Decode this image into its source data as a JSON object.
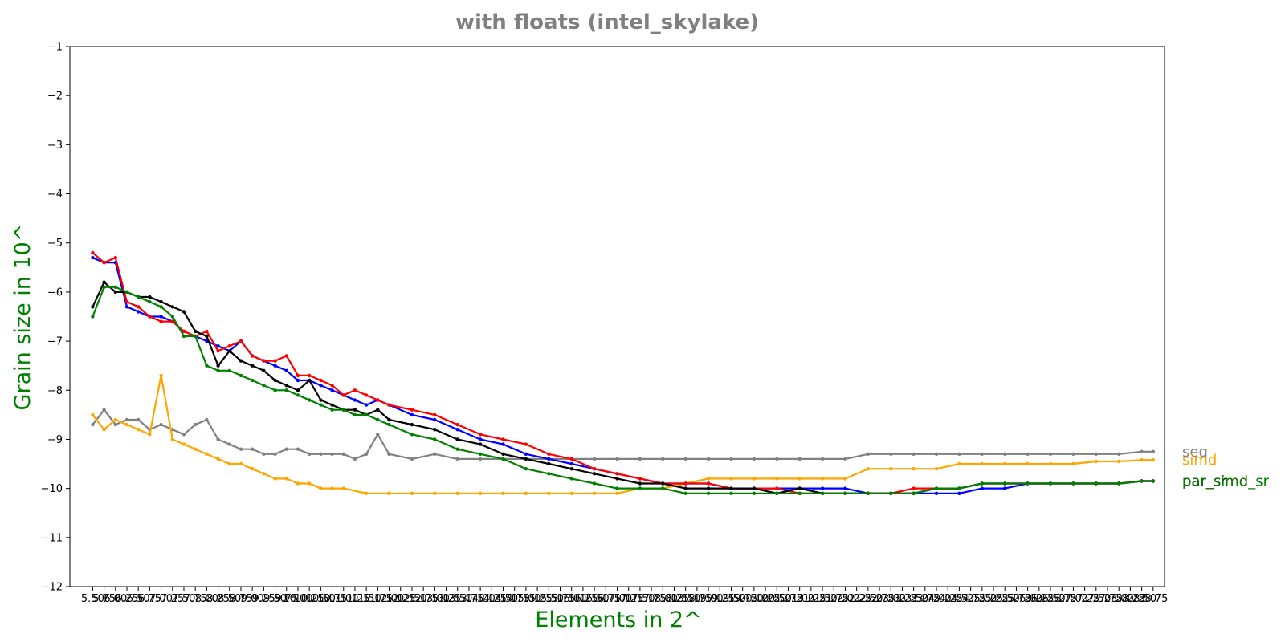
{
  "chart_data": {
    "type": "line",
    "title": "with floats  (intel_skylake)",
    "xlabel": "Elements in 2^",
    "ylabel": "Grain size in 10^",
    "ylim": [
      -12,
      -1
    ],
    "yticks": [
      "−12",
      "−11",
      "−10",
      "−9",
      "−8",
      "−7",
      "−6",
      "−5",
      "−4",
      "−3",
      "−2",
      "−1"
    ],
    "xlim": [
      5.0,
      29.0
    ],
    "xticks": [
      "5.50",
      "5.75",
      "6.00",
      "6.25",
      "6.50",
      "6.75",
      "7.00",
      "7.25",
      "7.50",
      "7.75",
      "8.00",
      "8.25",
      "8.50",
      "8.75",
      "9.00",
      "9.25",
      "9.50",
      "9.75",
      "10.00",
      "10.25",
      "10.50",
      "10.75",
      "11.00",
      "11.25",
      "11.50",
      "11.75",
      "12.00",
      "12.25",
      "12.50",
      "12.75",
      "13.00",
      "13.25",
      "13.50",
      "13.75",
      "14.00",
      "14.25",
      "14.50",
      "14.75",
      "15.00",
      "15.25",
      "15.50",
      "15.75",
      "16.00",
      "16.25",
      "16.50",
      "16.75",
      "17.00",
      "17.25",
      "17.50",
      "17.75",
      "18.00",
      "18.25",
      "18.50",
      "18.75",
      "19.00",
      "19.25",
      "19.50",
      "19.75",
      "20.00",
      "20.25",
      "20.50",
      "20.75",
      "21.00",
      "21.25",
      "21.50",
      "21.75",
      "22.00",
      "22.25",
      "22.50",
      "22.75",
      "23.00",
      "23.25",
      "23.50",
      "23.75",
      "24.00",
      "24.25",
      "24.50",
      "24.75",
      "25.00",
      "25.25",
      "25.50",
      "25.75",
      "26.00",
      "26.25",
      "26.50",
      "26.75",
      "27.00",
      "27.25",
      "27.50",
      "27.75",
      "28.00",
      "28.25",
      "28.50",
      "28.75"
    ],
    "grid": false,
    "legend_placement": "right of plot",
    "series": [
      {
        "name": "seq",
        "color": "#808080",
        "x": [
          5.5,
          5.75,
          6.0,
          6.25,
          6.5,
          6.75,
          7.0,
          7.25,
          7.5,
          7.75,
          8.0,
          8.25,
          8.5,
          8.75,
          9.0,
          9.25,
          9.5,
          9.75,
          10.0,
          10.25,
          10.5,
          10.75,
          11.0,
          11.25,
          11.5,
          11.75,
          12.0,
          12.5,
          13.0,
          13.5,
          14.0,
          14.5,
          15.0,
          15.5,
          16.0,
          16.5,
          17.0,
          17.5,
          18.0,
          18.5,
          19.0,
          19.5,
          20.0,
          20.5,
          21.0,
          21.5,
          22.0,
          22.5,
          23.0,
          23.5,
          24.0,
          24.5,
          25.0,
          25.5,
          26.0,
          26.5,
          27.0,
          27.5,
          28.0,
          28.5,
          28.75
        ],
        "y": [
          -8.7,
          -8.4,
          -8.7,
          -8.6,
          -8.6,
          -8.8,
          -8.7,
          -8.8,
          -8.9,
          -8.7,
          -8.6,
          -9.0,
          -9.1,
          -9.2,
          -9.2,
          -9.3,
          -9.3,
          -9.2,
          -9.2,
          -9.3,
          -9.3,
          -9.3,
          -9.3,
          -9.4,
          -9.3,
          -8.9,
          -9.3,
          -9.4,
          -9.3,
          -9.4,
          -9.4,
          -9.4,
          -9.4,
          -9.4,
          -9.4,
          -9.4,
          -9.4,
          -9.4,
          -9.4,
          -9.4,
          -9.4,
          -9.4,
          -9.4,
          -9.4,
          -9.4,
          -9.4,
          -9.4,
          -9.3,
          -9.3,
          -9.3,
          -9.3,
          -9.3,
          -9.3,
          -9.3,
          -9.3,
          -9.3,
          -9.3,
          -9.3,
          -9.3,
          -9.25,
          -9.25
        ]
      },
      {
        "name": "simd",
        "color": "#FFA500",
        "x": [
          5.5,
          5.75,
          6.0,
          6.25,
          6.5,
          6.75,
          7.0,
          7.25,
          7.5,
          7.75,
          8.0,
          8.25,
          8.5,
          8.75,
          9.0,
          9.25,
          9.5,
          9.75,
          10.0,
          10.25,
          10.5,
          10.75,
          11.0,
          11.5,
          12.0,
          12.5,
          13.0,
          13.5,
          14.0,
          14.5,
          15.0,
          15.5,
          16.0,
          16.5,
          17.0,
          17.5,
          18.0,
          18.5,
          19.0,
          19.5,
          20.0,
          20.5,
          21.0,
          21.5,
          22.0,
          22.5,
          23.0,
          23.5,
          24.0,
          24.5,
          25.0,
          25.5,
          26.0,
          26.5,
          27.0,
          27.5,
          28.0,
          28.5,
          28.75
        ],
        "y": [
          -8.5,
          -8.8,
          -8.6,
          -8.7,
          -8.8,
          -8.9,
          -7.7,
          -9.0,
          -9.1,
          -9.2,
          -9.3,
          -9.4,
          -9.5,
          -9.5,
          -9.6,
          -9.7,
          -9.8,
          -9.8,
          -9.9,
          -9.9,
          -10.0,
          -10.0,
          -10.0,
          -10.1,
          -10.1,
          -10.1,
          -10.1,
          -10.1,
          -10.1,
          -10.1,
          -10.1,
          -10.1,
          -10.1,
          -10.1,
          -10.1,
          -10.0,
          -10.0,
          -9.9,
          -9.8,
          -9.8,
          -9.8,
          -9.8,
          -9.8,
          -9.8,
          -9.8,
          -9.6,
          -9.6,
          -9.6,
          -9.6,
          -9.5,
          -9.5,
          -9.5,
          -9.5,
          -9.5,
          -9.5,
          -9.45,
          -9.45,
          -9.42,
          -9.42
        ]
      },
      {
        "name": "par",
        "color": "#0000FF",
        "x": [
          5.5,
          5.75,
          6.0,
          6.25,
          6.5,
          6.75,
          7.0,
          7.25,
          7.5,
          7.75,
          8.0,
          8.25,
          8.5,
          8.75,
          9.0,
          9.25,
          9.5,
          9.75,
          10.0,
          10.25,
          10.5,
          10.75,
          11.0,
          11.25,
          11.5,
          11.75,
          12.0,
          12.5,
          13.0,
          13.5,
          14.0,
          14.5,
          15.0,
          15.5,
          16.0,
          16.5,
          17.0,
          17.5,
          18.0,
          18.5,
          19.0,
          19.5,
          20.0,
          20.5,
          21.0,
          21.5,
          22.0,
          22.5,
          23.0,
          23.5,
          24.0,
          24.5,
          25.0,
          25.5,
          26.0,
          26.5,
          27.0,
          27.5,
          28.0,
          28.5,
          28.75
        ],
        "y": [
          -5.3,
          -5.4,
          -5.4,
          -6.3,
          -6.4,
          -6.5,
          -6.5,
          -6.6,
          -6.8,
          -6.9,
          -7.0,
          -7.1,
          -7.2,
          -7.0,
          -7.3,
          -7.4,
          -7.5,
          -7.6,
          -7.8,
          -7.8,
          -7.9,
          -8.0,
          -8.1,
          -8.2,
          -8.3,
          -8.2,
          -8.3,
          -8.5,
          -8.6,
          -8.8,
          -9.0,
          -9.1,
          -9.3,
          -9.4,
          -9.5,
          -9.6,
          -9.7,
          -9.8,
          -9.9,
          -9.9,
          -9.9,
          -10.0,
          -10.0,
          -10.0,
          -10.0,
          -10.0,
          -10.0,
          -10.1,
          -10.1,
          -10.1,
          -10.1,
          -10.1,
          -10.0,
          -10.0,
          -9.9,
          -9.9,
          -9.9,
          -9.9,
          -9.9,
          -9.85,
          -9.85
        ]
      },
      {
        "name": "par_simd",
        "color": "#FF0000",
        "x": [
          5.5,
          5.75,
          6.0,
          6.25,
          6.5,
          6.75,
          7.0,
          7.25,
          7.5,
          7.75,
          8.0,
          8.25,
          8.5,
          8.75,
          9.0,
          9.25,
          9.5,
          9.75,
          10.0,
          10.25,
          10.5,
          10.75,
          11.0,
          11.25,
          11.5,
          11.75,
          12.0,
          12.5,
          13.0,
          13.5,
          14.0,
          14.5,
          15.0,
          15.5,
          16.0,
          16.5,
          17.0,
          17.5,
          18.0,
          18.5,
          19.0,
          19.5,
          20.0,
          20.5,
          21.0,
          21.5,
          22.0,
          22.5,
          23.0,
          23.5,
          24.0,
          24.5,
          25.0,
          25.5,
          26.0,
          26.5,
          27.0,
          27.5,
          28.0,
          28.5,
          28.75
        ],
        "y": [
          -5.2,
          -5.4,
          -5.3,
          -6.2,
          -6.3,
          -6.5,
          -6.6,
          -6.6,
          -6.8,
          -6.9,
          -6.8,
          -7.2,
          -7.1,
          -7.0,
          -7.3,
          -7.4,
          -7.4,
          -7.3,
          -7.7,
          -7.7,
          -7.8,
          -7.9,
          -8.1,
          -8.0,
          -8.1,
          -8.2,
          -8.3,
          -8.4,
          -8.5,
          -8.7,
          -8.9,
          -9.0,
          -9.1,
          -9.3,
          -9.4,
          -9.6,
          -9.7,
          -9.8,
          -9.9,
          -9.9,
          -9.9,
          -10.0,
          -10.0,
          -10.0,
          -10.1,
          -10.1,
          -10.1,
          -10.1,
          -10.1,
          -10.0,
          -10.0,
          -10.0,
          -9.9,
          -9.9,
          -9.9,
          -9.9,
          -9.9,
          -9.9,
          -9.9,
          -9.85,
          -9.85
        ]
      },
      {
        "name": "par_sr",
        "color": "#000000",
        "x": [
          5.5,
          5.75,
          6.0,
          6.25,
          6.5,
          6.75,
          7.0,
          7.25,
          7.5,
          7.75,
          8.0,
          8.25,
          8.5,
          8.75,
          9.0,
          9.25,
          9.5,
          9.75,
          10.0,
          10.25,
          10.5,
          10.75,
          11.0,
          11.25,
          11.5,
          11.75,
          12.0,
          12.5,
          13.0,
          13.5,
          14.0,
          14.5,
          15.0,
          15.5,
          16.0,
          16.5,
          17.0,
          17.5,
          18.0,
          18.5,
          19.0,
          19.5,
          20.0,
          20.5,
          21.0,
          21.5,
          22.0,
          22.5,
          23.0,
          23.5,
          24.0,
          24.5,
          25.0,
          25.5,
          26.0,
          26.5,
          27.0,
          27.5,
          28.0,
          28.5,
          28.75
        ],
        "y": [
          -6.3,
          -5.8,
          -6.0,
          -6.0,
          -6.1,
          -6.1,
          -6.2,
          -6.3,
          -6.4,
          -6.8,
          -6.9,
          -7.5,
          -7.2,
          -7.4,
          -7.5,
          -7.6,
          -7.8,
          -7.9,
          -8.0,
          -7.8,
          -8.2,
          -8.3,
          -8.4,
          -8.4,
          -8.5,
          -8.4,
          -8.6,
          -8.7,
          -8.8,
          -9.0,
          -9.1,
          -9.3,
          -9.4,
          -9.5,
          -9.6,
          -9.7,
          -9.8,
          -9.9,
          -9.9,
          -10.0,
          -10.0,
          -10.0,
          -10.0,
          -10.1,
          -10.0,
          -10.1,
          -10.1,
          -10.1,
          -10.1,
          -10.1,
          -10.0,
          -10.0,
          -9.9,
          -9.9,
          -9.9,
          -9.9,
          -9.9,
          -9.9,
          -9.9,
          -9.85,
          -9.85
        ]
      },
      {
        "name": "par_simd_sr",
        "color": "#008000",
        "x": [
          5.5,
          5.75,
          6.0,
          6.25,
          6.5,
          6.75,
          7.0,
          7.25,
          7.5,
          7.75,
          8.0,
          8.25,
          8.5,
          8.75,
          9.0,
          9.25,
          9.5,
          9.75,
          10.0,
          10.25,
          10.5,
          10.75,
          11.0,
          11.25,
          11.5,
          11.75,
          12.0,
          12.5,
          13.0,
          13.5,
          14.0,
          14.5,
          15.0,
          15.5,
          16.0,
          16.5,
          17.0,
          17.5,
          18.0,
          18.5,
          19.0,
          19.5,
          20.0,
          20.5,
          21.0,
          21.5,
          22.0,
          22.5,
          23.0,
          23.5,
          24.0,
          24.5,
          25.0,
          25.5,
          26.0,
          26.5,
          27.0,
          27.5,
          28.0,
          28.5,
          28.75
        ],
        "y": [
          -6.5,
          -5.9,
          -5.9,
          -6.0,
          -6.1,
          -6.2,
          -6.3,
          -6.5,
          -6.9,
          -6.9,
          -7.5,
          -7.6,
          -7.6,
          -7.7,
          -7.8,
          -7.9,
          -8.0,
          -8.0,
          -8.1,
          -8.2,
          -8.3,
          -8.4,
          -8.4,
          -8.5,
          -8.5,
          -8.6,
          -8.7,
          -8.9,
          -9.0,
          -9.2,
          -9.3,
          -9.4,
          -9.6,
          -9.7,
          -9.8,
          -9.9,
          -10.0,
          -10.0,
          -10.0,
          -10.1,
          -10.1,
          -10.1,
          -10.1,
          -10.1,
          -10.1,
          -10.1,
          -10.1,
          -10.1,
          -10.1,
          -10.1,
          -10.0,
          -10.0,
          -9.9,
          -9.9,
          -9.9,
          -9.9,
          -9.9,
          -9.9,
          -9.9,
          -9.85,
          -9.85
        ]
      }
    ]
  }
}
